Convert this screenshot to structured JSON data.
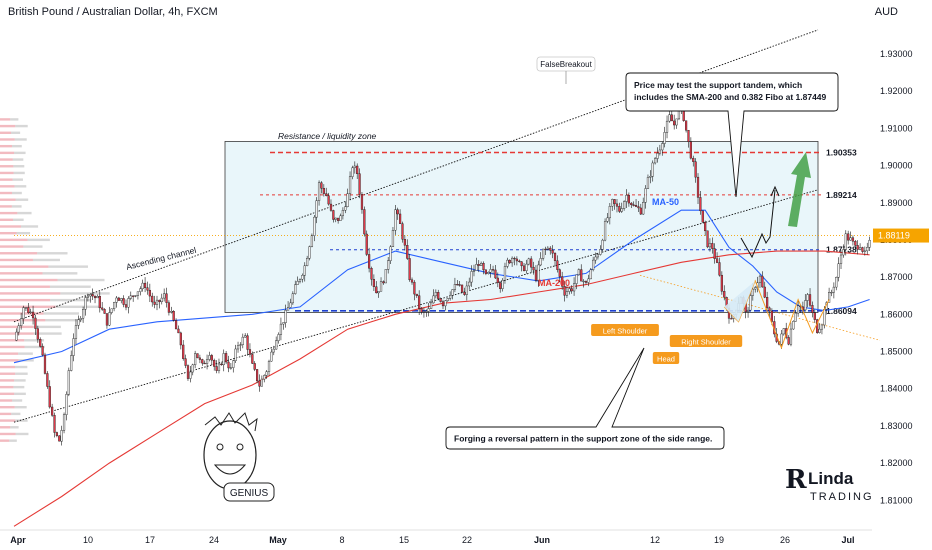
{
  "header": {
    "title": "British Pound / Australian Dollar, 4h, FXCM",
    "currency": "AUD"
  },
  "colors": {
    "background": "#ffffff",
    "candle_up": "#f2f2f2",
    "candle_down": "#e03a4a",
    "candle_wick": "#1a1a1a",
    "ma50": "#2962ff",
    "ma200": "#e53935",
    "resistance_line": "#e53935",
    "support_line": "#1e3fcf",
    "arrow_green": "#43a047",
    "zone_fill": "#e9f6fa",
    "callout_orange": "#f59b1e",
    "price_tag": "#f6a400"
  },
  "chart_data": {
    "type": "candlestick",
    "title": "British Pound / Australian Dollar, 4h, FXCM",
    "y_axis": {
      "unit": "AUD",
      "ylim": [
        1.802,
        1.944
      ],
      "ticks": [
        "1.93000",
        "1.92000",
        "1.91000",
        "1.90000",
        "1.89000",
        "1.88000",
        "1.87000",
        "1.86000",
        "1.85000",
        "1.84000",
        "1.83000",
        "1.82000",
        "1.81000"
      ]
    },
    "x_axis": {
      "ticks": [
        "Apr",
        "10",
        "17",
        "24",
        "May",
        "8",
        "15",
        "22",
        "Jun",
        "12",
        "19",
        "26",
        "Jul"
      ]
    },
    "close_path": [
      [
        0,
        1.853
      ],
      [
        4,
        1.862
      ],
      [
        8,
        1.86
      ],
      [
        12,
        1.848
      ],
      [
        15,
        1.836
      ],
      [
        17,
        1.828
      ],
      [
        19,
        1.826
      ],
      [
        21,
        1.832
      ],
      [
        23,
        1.845
      ],
      [
        25,
        1.854
      ],
      [
        28,
        1.86
      ],
      [
        31,
        1.866
      ],
      [
        35,
        1.864
      ],
      [
        39,
        1.858
      ],
      [
        43,
        1.865
      ],
      [
        47,
        1.863
      ],
      [
        51,
        1.866
      ],
      [
        55,
        1.868
      ],
      [
        59,
        1.862
      ],
      [
        63,
        1.865
      ],
      [
        67,
        1.858
      ],
      [
        70,
        1.852
      ],
      [
        73,
        1.842
      ],
      [
        76,
        1.85
      ],
      [
        79,
        1.846
      ],
      [
        82,
        1.85
      ],
      [
        85,
        1.844
      ],
      [
        88,
        1.849
      ],
      [
        91,
        1.845
      ],
      [
        94,
        1.852
      ],
      [
        97,
        1.854
      ],
      [
        100,
        1.846
      ],
      [
        103,
        1.841
      ],
      [
        106,
        1.845
      ],
      [
        110,
        1.854
      ],
      [
        114,
        1.86
      ],
      [
        118,
        1.867
      ],
      [
        122,
        1.873
      ],
      [
        125,
        1.882
      ],
      [
        128,
        1.895
      ],
      [
        131,
        1.892
      ],
      [
        134,
        1.885
      ],
      [
        137,
        1.886
      ],
      [
        140,
        1.892
      ],
      [
        142,
        1.9
      ],
      [
        144,
        1.898
      ],
      [
        146,
        1.888
      ],
      [
        148,
        1.877
      ],
      [
        150,
        1.87
      ],
      [
        152,
        1.866
      ],
      [
        154,
        1.868
      ],
      [
        156,
        1.871
      ],
      [
        158,
        1.879
      ],
      [
        160,
        1.888
      ],
      [
        162,
        1.884
      ],
      [
        164,
        1.878
      ],
      [
        166,
        1.87
      ],
      [
        168,
        1.866
      ],
      [
        171,
        1.86
      ],
      [
        174,
        1.861
      ],
      [
        177,
        1.866
      ],
      [
        180,
        1.863
      ],
      [
        183,
        1.866
      ],
      [
        186,
        1.868
      ],
      [
        189,
        1.865
      ],
      [
        192,
        1.871
      ],
      [
        195,
        1.874
      ],
      [
        198,
        1.87
      ],
      [
        201,
        1.872
      ],
      [
        204,
        1.868
      ],
      [
        207,
        1.874
      ],
      [
        210,
        1.876
      ],
      [
        213,
        1.872
      ],
      [
        216,
        1.874
      ],
      [
        219,
        1.87
      ],
      [
        222,
        1.877
      ],
      [
        225,
        1.878
      ],
      [
        228,
        1.872
      ],
      [
        231,
        1.866
      ],
      [
        234,
        1.867
      ],
      [
        237,
        1.871
      ],
      [
        240,
        1.868
      ],
      [
        243,
        1.874
      ],
      [
        246,
        1.878
      ],
      [
        248,
        1.884
      ],
      [
        251,
        1.89
      ],
      [
        254,
        1.888
      ],
      [
        257,
        1.892
      ],
      [
        260,
        1.889
      ],
      [
        263,
        1.888
      ],
      [
        266,
        1.896
      ],
      [
        269,
        1.902
      ],
      [
        271,
        1.905
      ],
      [
        273,
        1.909
      ],
      [
        275,
        1.913
      ],
      [
        277,
        1.911
      ],
      [
        279,
        1.916
      ],
      [
        281,
        1.913
      ],
      [
        283,
        1.906
      ],
      [
        285,
        1.9
      ],
      [
        287,
        1.892
      ],
      [
        289,
        1.884
      ],
      [
        291,
        1.879
      ],
      [
        293,
        1.878
      ],
      [
        295,
        1.873
      ],
      [
        297,
        1.867
      ],
      [
        299,
        1.862
      ],
      [
        301,
        1.858
      ],
      [
        303,
        1.862
      ],
      [
        305,
        1.865
      ],
      [
        307,
        1.86
      ],
      [
        309,
        1.864
      ],
      [
        311,
        1.868
      ],
      [
        313,
        1.87
      ],
      [
        315,
        1.864
      ],
      [
        317,
        1.86
      ],
      [
        319,
        1.855
      ],
      [
        321,
        1.852
      ],
      [
        323,
        1.856
      ],
      [
        325,
        1.853
      ],
      [
        327,
        1.859
      ],
      [
        329,
        1.863
      ],
      [
        331,
        1.861
      ],
      [
        333,
        1.865
      ],
      [
        335,
        1.86
      ],
      [
        337,
        1.856
      ],
      [
        339,
        1.858
      ],
      [
        341,
        1.864
      ],
      [
        343,
        1.866
      ],
      [
        345,
        1.87
      ],
      [
        347,
        1.876
      ],
      [
        349,
        1.881
      ],
      [
        351,
        1.88
      ],
      [
        353,
        1.878
      ],
      [
        355,
        1.879
      ],
      [
        357,
        1.876
      ],
      [
        359,
        1.879
      ]
    ],
    "series": [
      {
        "name": "MA-50",
        "points": [
          [
            0,
            1.847
          ],
          [
            20,
            1.85
          ],
          [
            40,
            1.856
          ],
          [
            60,
            1.858
          ],
          [
            80,
            1.859
          ],
          [
            100,
            1.86
          ],
          [
            120,
            1.862
          ],
          [
            140,
            1.872
          ],
          [
            160,
            1.877
          ],
          [
            180,
            1.874
          ],
          [
            200,
            1.871
          ],
          [
            220,
            1.869
          ],
          [
            240,
            1.871
          ],
          [
            260,
            1.88
          ],
          [
            280,
            1.888
          ],
          [
            290,
            1.888
          ],
          [
            300,
            1.878
          ],
          [
            310,
            1.873
          ],
          [
            320,
            1.866
          ],
          [
            330,
            1.862
          ],
          [
            340,
            1.861
          ],
          [
            350,
            1.862
          ],
          [
            359,
            1.864
          ]
        ]
      },
      {
        "name": "MA-200",
        "points": [
          [
            0,
            1.803
          ],
          [
            20,
            1.811
          ],
          [
            40,
            1.82
          ],
          [
            60,
            1.828
          ],
          [
            80,
            1.836
          ],
          [
            100,
            1.841
          ],
          [
            120,
            1.848
          ],
          [
            140,
            1.856
          ],
          [
            160,
            1.86
          ],
          [
            180,
            1.863
          ],
          [
            200,
            1.864
          ],
          [
            220,
            1.866
          ],
          [
            240,
            1.868
          ],
          [
            260,
            1.871
          ],
          [
            280,
            1.874
          ],
          [
            300,
            1.876
          ],
          [
            320,
            1.877
          ],
          [
            340,
            1.877
          ],
          [
            359,
            1.876
          ]
        ]
      }
    ],
    "levels": [
      {
        "label": "1.90353",
        "value": 1.90353,
        "style": "resistance"
      },
      {
        "label": "1.89214",
        "value": 1.89214,
        "style": "minor-resistance"
      },
      {
        "label": "1.87738",
        "value": 1.87738,
        "style": "minor-support"
      },
      {
        "label": "1.86094",
        "value": 1.86094,
        "style": "support"
      }
    ],
    "current_price": "1.88119",
    "annotations": {
      "false_breakout": "FalseBreakout",
      "resistance_zone": "Resistance / liquidity zone",
      "ascending_channel": "Ascending channel",
      "ma50": "MA-50",
      "ma200": "MA-200",
      "left_shoulder": "Left Shoulder",
      "head": "Head",
      "right_shoulder": "Right Shoulder",
      "callout_top": [
        "Price may test the support tandem, which",
        "includes the SMA-200 and 0.382 Fibo at 1.87449"
      ],
      "callout_bottom": "Forging a reversal pattern in the support zone of the side range.",
      "brand": [
        "Linda",
        "TRADING"
      ],
      "genius": "GENIUS"
    }
  }
}
